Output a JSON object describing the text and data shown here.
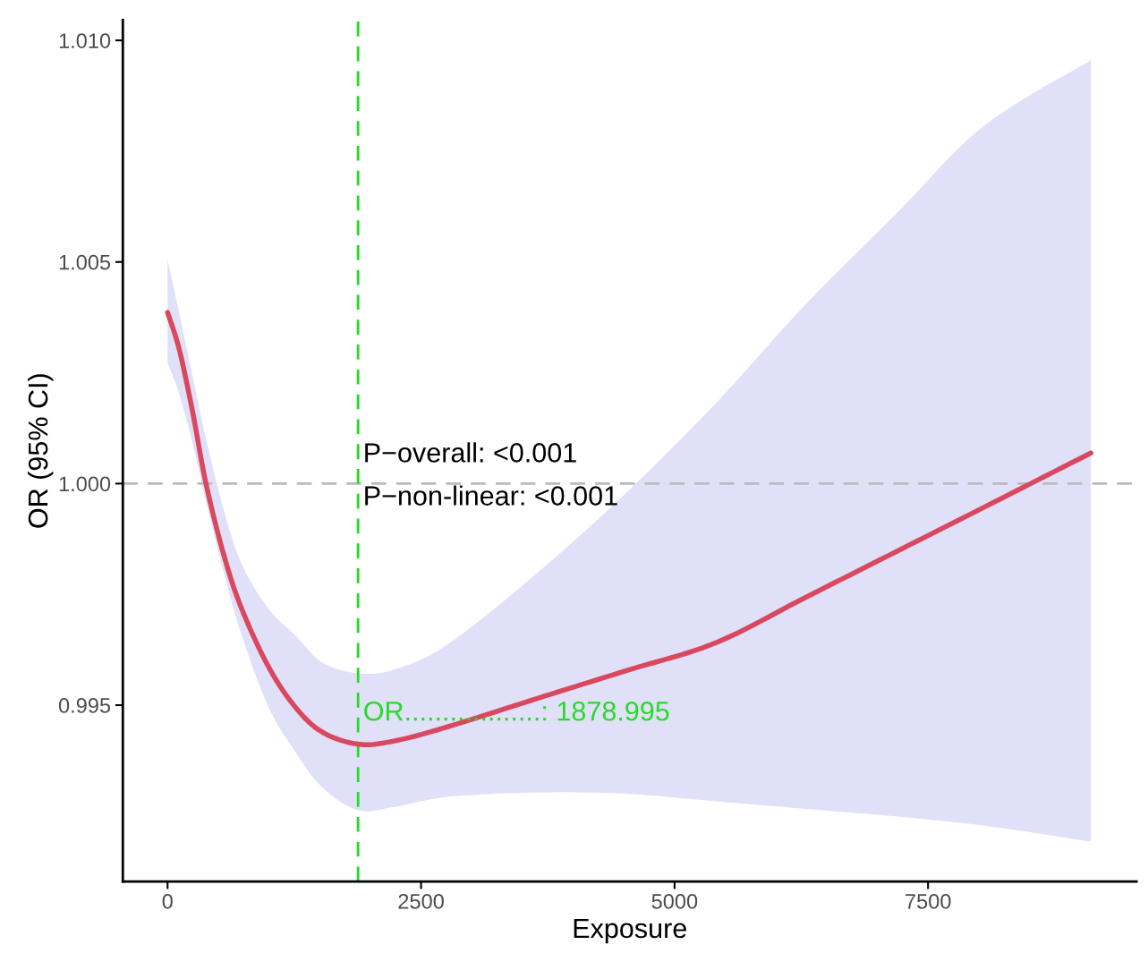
{
  "chart_data": {
    "type": "line",
    "xlabel": "Exposure",
    "ylabel": "OR (95% CI)",
    "x": [
      0,
      115,
      247,
      379,
      556,
      732,
      997,
      1262,
      1527,
      1879,
      2232,
      2762,
      3644,
      4527,
      5409,
      6291,
      7174,
      8056,
      9106
    ],
    "series": [
      {
        "color": "#d9485f",
        "values": [
          1.00386,
          1.00303,
          1.00162,
          1.0,
          0.99838,
          0.99717,
          0.99586,
          0.99495,
          0.99439,
          0.99412,
          0.99419,
          0.99451,
          0.99515,
          0.99578,
          0.99641,
          0.99743,
          0.99845,
          0.99947,
          1.00069
        ],
        "upper": [
          1.00505,
          1.00384,
          1.00242,
          1.00101,
          0.99939,
          0.99818,
          0.99717,
          0.99657,
          0.99596,
          0.99572,
          0.9958,
          0.99637,
          0.99798,
          0.9998,
          1.00182,
          1.00404,
          1.00606,
          1.00808,
          1.00955
        ],
        "lower": [
          1.00273,
          1.00202,
          1.00091,
          0.9996,
          0.99798,
          0.99657,
          0.99495,
          0.99394,
          0.99314,
          0.99263,
          0.9927,
          0.99293,
          0.99303,
          0.993,
          0.99283,
          0.99266,
          0.99249,
          0.99228,
          0.99192
        ]
      }
    ],
    "xlim": [
      -441,
      9556
    ],
    "ylim": [
      0.99102,
      1.01046
    ],
    "xticks": [
      0,
      2500,
      5000,
      7500
    ],
    "yticks": [
      {
        "value": 0.995,
        "label": "0.995"
      },
      {
        "value": 1.0,
        "label": "1.000"
      },
      {
        "value": 1.005,
        "label": "1.005"
      },
      {
        "value": 1.01,
        "label": "1.010"
      }
    ],
    "ref_lines": [
      {
        "axis": "y",
        "value": 1.0,
        "color": "#bbbbbb",
        "line_style": "dashed"
      },
      {
        "axis": "x",
        "value": 1878.995,
        "color": "#22dd22",
        "line_style": "dashed"
      }
    ],
    "annotations": [
      "P−overall: <0.001",
      "P−non-linear: <0.001",
      "OR..................: 1878.995"
    ],
    "grid": false,
    "legend": false,
    "marker": "none",
    "line_style": "solid"
  }
}
